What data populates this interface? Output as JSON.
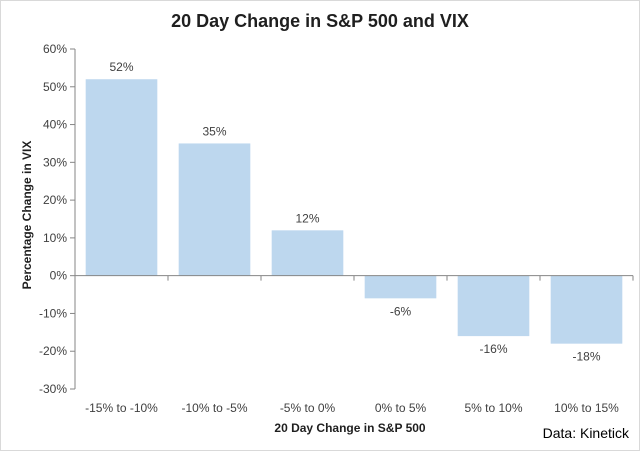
{
  "chart_data": {
    "type": "bar",
    "title": "20 Day Change in S&P 500 and VIX",
    "xlabel": "20 Day Change in S&P 500",
    "ylabel": "Percentage Change in VIX",
    "source": "Data: Kinetick",
    "categories": [
      "-15% to -10%",
      "-10% to -5%",
      "-5% to 0%",
      "0% to 5%",
      "5% to 10%",
      "10% to 15%"
    ],
    "values": [
      52,
      35,
      12,
      -6,
      -16,
      -18
    ],
    "data_labels": [
      "52%",
      "35%",
      "12%",
      "-6%",
      "-16%",
      "-18%"
    ],
    "yticks": [
      60,
      50,
      40,
      30,
      20,
      10,
      0,
      -10,
      -20,
      -30
    ],
    "ytick_labels": [
      "60%",
      "50%",
      "40%",
      "30%",
      "20%",
      "10%",
      "0%",
      "-10%",
      "-20%",
      "-30%"
    ],
    "ylim": [
      -30,
      60
    ],
    "grid": false,
    "legend": "none",
    "bar_color": "#bdd7ee",
    "axis_color": "#868686"
  }
}
